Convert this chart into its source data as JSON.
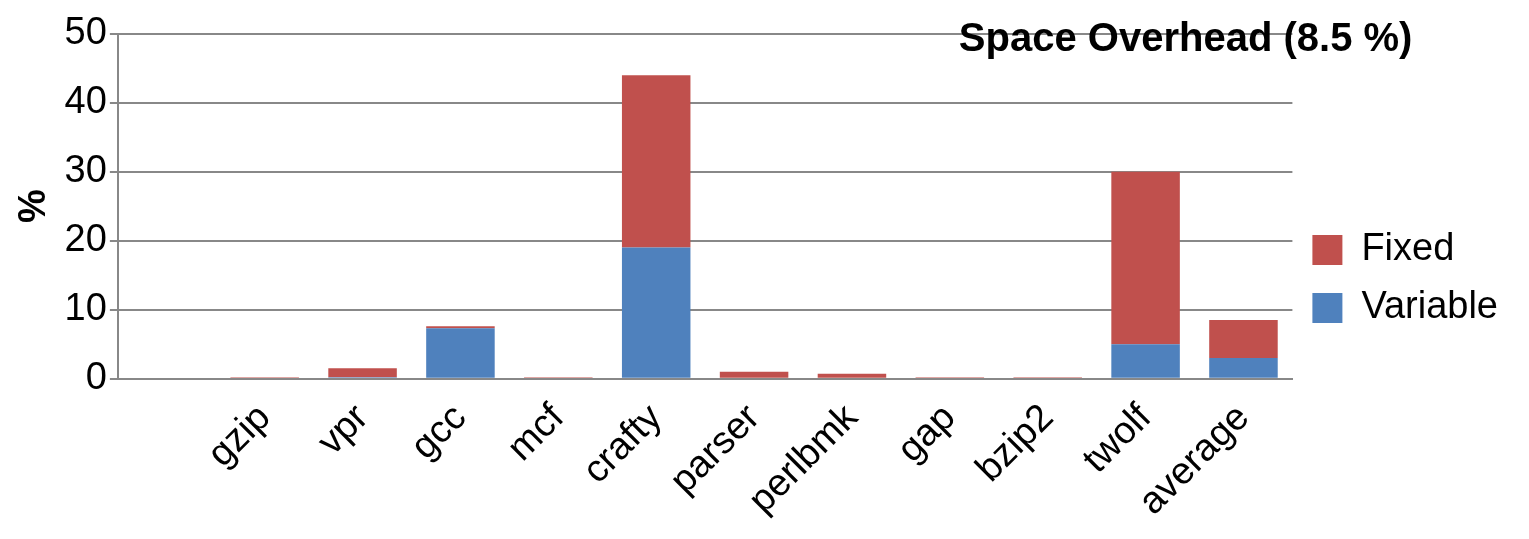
{
  "chart_data": {
    "type": "bar",
    "title": "Space Overhead (8.5 %)",
    "ylabel": "%",
    "categories": [
      null,
      "gzip",
      "vpr",
      "gcc",
      "mcf",
      "crafty",
      "parser",
      "perlbmk",
      "gap",
      "bzip2",
      "twolf",
      "average"
    ],
    "stacked": true,
    "series": [
      {
        "name": "Variable",
        "color": "#4f81bd",
        "values": [
          null,
          0,
          0.2,
          7.3,
          0,
          19,
          0,
          0,
          0,
          0,
          5,
          3
        ]
      },
      {
        "name": "Fixed",
        "color": "#c0504d",
        "values": [
          null,
          0.2,
          1.3,
          0.3,
          0.2,
          25,
          1,
          0.7,
          0.2,
          0.2,
          25,
          5.5
        ]
      }
    ],
    "ylim": [
      0,
      50
    ],
    "yticks": [
      0,
      10,
      20,
      30,
      40,
      50
    ],
    "grid": "y",
    "legend": "right"
  }
}
